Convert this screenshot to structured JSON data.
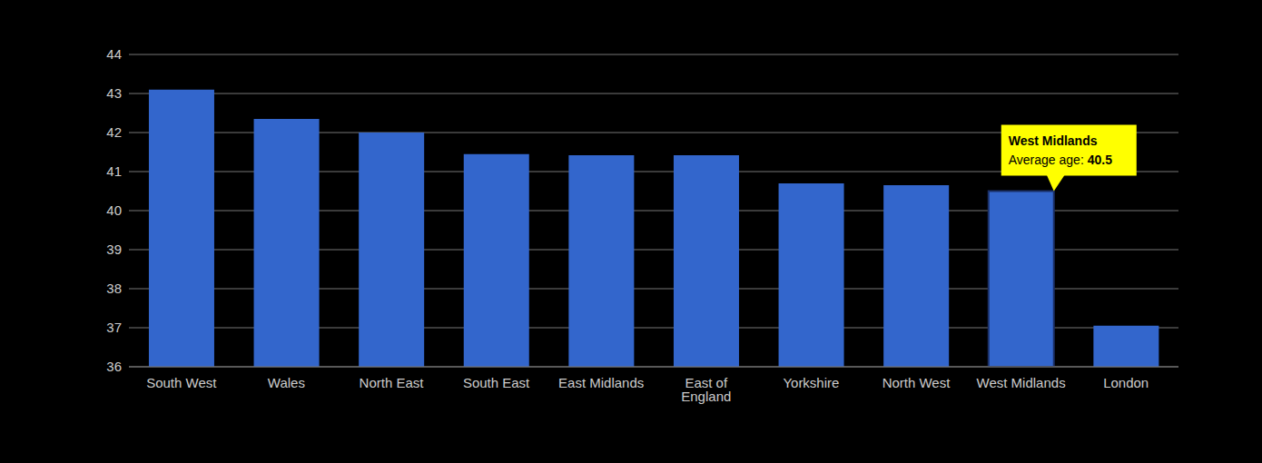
{
  "chart_data": {
    "type": "bar",
    "categories": [
      "South West",
      "Wales",
      "North East",
      "South East",
      "East Midlands",
      "East of England",
      "Yorkshire",
      "North West",
      "West Midlands",
      "London"
    ],
    "values": [
      43.1,
      42.35,
      42.0,
      41.45,
      41.42,
      41.42,
      40.7,
      40.65,
      40.5,
      37.05
    ],
    "color": "#3366cc",
    "ylim": [
      36,
      44
    ],
    "yticks": [
      36,
      37,
      38,
      39,
      40,
      41,
      42,
      43,
      44
    ],
    "grid": true,
    "annotation": {
      "category": "West Midlands",
      "label": "Average age:",
      "value": 40.5
    }
  }
}
